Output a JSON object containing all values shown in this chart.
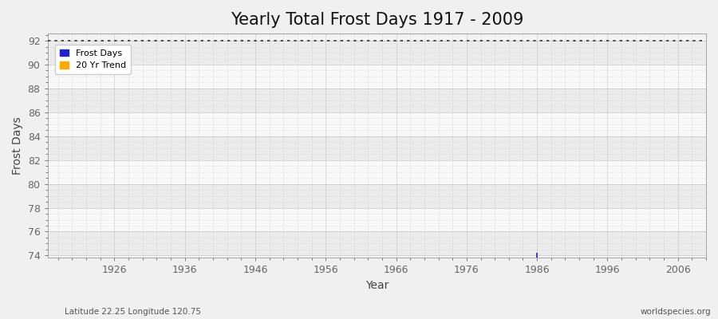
{
  "title": "Yearly Total Frost Days 1917 - 2009",
  "xlabel": "Year",
  "ylabel": "Frost Days",
  "xlim": [
    1916.5,
    2010
  ],
  "ylim": [
    73.8,
    92.6
  ],
  "yticks": [
    74,
    76,
    78,
    80,
    82,
    84,
    86,
    88,
    90,
    92
  ],
  "xticks": [
    1926,
    1936,
    1946,
    1956,
    1966,
    1976,
    1986,
    1996,
    2006
  ],
  "dashed_line_y": 92,
  "dashed_line_color": "#333333",
  "data_point_x": 1986,
  "data_point_y": 74,
  "data_point_color": "#2222cc",
  "legend_frost_color": "#2222cc",
  "legend_trend_color": "#ffaa00",
  "fig_bg_color": "#f0f0f0",
  "plot_bg_color": "#f4f4f4",
  "major_grid_color": "#e0e0e0",
  "minor_grid_color": "#e8e8e8",
  "band_color_even": "#ebebeb",
  "band_color_odd": "#f8f8f8",
  "subtitle_left": "Latitude 22.25 Longitude 120.75",
  "subtitle_right": "worldspecies.org",
  "title_fontsize": 15,
  "axis_label_fontsize": 10,
  "tick_fontsize": 9,
  "tick_color": "#666666"
}
